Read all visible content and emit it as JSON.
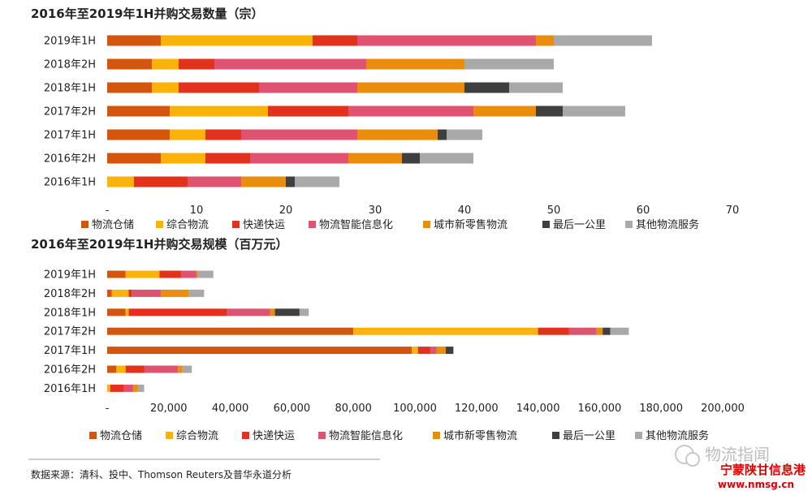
{
  "source_note": "数据来源：清科、投中、Thomson Reuters及普华永道分析",
  "watermark": "物流指闻",
  "stamp": {
    "line1": "宁蒙陕甘信息港",
    "line2": "www.nmsg.cn"
  },
  "chart_data": [
    {
      "type": "bar",
      "orientation": "horizontal-stacked",
      "title": "2016年至2019年1H并购交易数量（宗）",
      "categories": [
        "2019年1H",
        "2018年2H",
        "2018年1H",
        "2017年2H",
        "2017年1H",
        "2016年2H",
        "2016年1H"
      ],
      "xlim": [
        0,
        70
      ],
      "xticks": [
        "-",
        "10",
        "20",
        "30",
        "40",
        "50",
        "60",
        "70"
      ],
      "legend_position": "bottom",
      "grid": false,
      "series": [
        {
          "name": "物流仓储",
          "color": "#d4560e",
          "values": [
            6,
            5,
            5,
            7,
            7,
            6,
            0
          ]
        },
        {
          "name": "综合物流",
          "color": "#fbb30a",
          "values": [
            17,
            3,
            3,
            11,
            4,
            5,
            3
          ]
        },
        {
          "name": "快递快运",
          "color": "#e3321c",
          "values": [
            5,
            4,
            9,
            9,
            4,
            5,
            6
          ]
        },
        {
          "name": "物流智能信息化",
          "color": "#df5370",
          "values": [
            20,
            17,
            11,
            14,
            13,
            11,
            6
          ]
        },
        {
          "name": "城市新零售物流",
          "color": "#eb8d0c",
          "values": [
            2,
            11,
            12,
            7,
            9,
            6,
            5
          ]
        },
        {
          "name": "最后一公里",
          "color": "#3f3f3f",
          "values": [
            0,
            0,
            5,
            3,
            1,
            2,
            1
          ]
        },
        {
          "name": "其他物流服务",
          "color": "#a9a9a9",
          "values": [
            11,
            10,
            6,
            7,
            4,
            6,
            5
          ]
        }
      ]
    },
    {
      "type": "bar",
      "orientation": "horizontal-stacked",
      "title": "2016年至2019年1H并购交易规模（百万元）",
      "categories": [
        "2019年1H",
        "2018年2H",
        "2018年1H",
        "2017年2H",
        "2017年1H",
        "2016年2H",
        "2016年1H"
      ],
      "xlim": [
        0,
        200000
      ],
      "xticks": [
        "-",
        "20,000",
        "40,000",
        "60,000",
        "80,000",
        "100,000",
        "120,000",
        "140,000",
        "160,000",
        "180,000",
        "200,000"
      ],
      "legend_position": "bottom",
      "grid": false,
      "series": [
        {
          "name": "物流仓储",
          "color": "#d4560e",
          "values": [
            6000,
            1500,
            6000,
            80000,
            99000,
            3000,
            0
          ]
        },
        {
          "name": "综合物流",
          "color": "#fbb30a",
          "values": [
            11000,
            5500,
            1000,
            60000,
            2000,
            3000,
            1000
          ]
        },
        {
          "name": "快递快运",
          "color": "#e3321c",
          "values": [
            7000,
            1000,
            32000,
            10000,
            4000,
            6000,
            4500
          ]
        },
        {
          "name": "物流智能信息化",
          "color": "#df5370",
          "values": [
            5000,
            9500,
            14000,
            9000,
            2000,
            11000,
            3000
          ]
        },
        {
          "name": "城市新零售物流",
          "color": "#eb8d0c",
          "values": [
            500,
            9000,
            1500,
            2000,
            3000,
            1500,
            1500
          ]
        },
        {
          "name": "最后一公里",
          "color": "#3f3f3f",
          "values": [
            0,
            0,
            8000,
            2500,
            2500,
            0,
            0
          ]
        },
        {
          "name": "其他物流服务",
          "color": "#a9a9a9",
          "values": [
            5000,
            5000,
            3000,
            6000,
            0,
            3000,
            2000
          ]
        }
      ]
    }
  ]
}
